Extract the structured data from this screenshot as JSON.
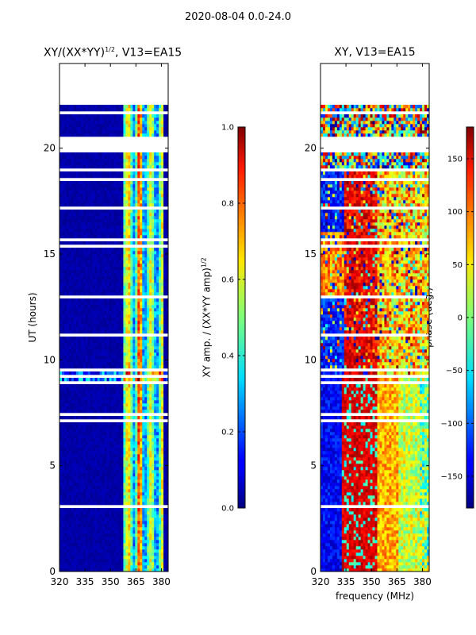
{
  "suptitle": "2020-08-04 0.0-24.0",
  "chart_data": [
    {
      "type": "heatmap",
      "title": "XY/(XX*YY)^1/2, V13=EA15",
      "title_main": "XY/(XX*YY)",
      "title_sup": "1/2",
      "title_rest": ", V13=EA15",
      "xlabel": "",
      "ylabel": "UT (hours)",
      "xlim": [
        320,
        384
      ],
      "ylim": [
        0,
        24
      ],
      "xticks": [
        "320",
        "335",
        "350",
        "365",
        "380"
      ],
      "yticks": [
        "0",
        "5",
        "10",
        "15",
        "20"
      ],
      "colorbar": {
        "label": "XY amp. / (XX*YY amp)^1/2",
        "label_main": "XY amp. / (XX*YY amp)",
        "label_sup": "1/2",
        "range": [
          0.0,
          1.0
        ],
        "ticks": [
          "0.0",
          "0.2",
          "0.4",
          "0.6",
          "0.8",
          "1.0"
        ],
        "colormap": "jet"
      }
    },
    {
      "type": "heatmap",
      "title": "XY, V13=EA15",
      "xlabel": "frequency (MHz)",
      "ylabel": "",
      "xlim": [
        320,
        384
      ],
      "ylim": [
        0,
        24
      ],
      "xticks": [
        "320",
        "335",
        "350",
        "365",
        "380"
      ],
      "yticks": [
        "0",
        "5",
        "10",
        "15",
        "20"
      ],
      "colorbar": {
        "label": "phase (deg.)",
        "range": [
          -180,
          180
        ],
        "ticks": [
          "−150",
          "−100",
          "−50",
          "0",
          "50",
          "100",
          "150"
        ],
        "colormap": "jet"
      }
    }
  ],
  "data_gaps_hours": [
    [
      19.8,
      20.6
    ],
    [
      18.9,
      19.1
    ],
    [
      22.0,
      24.0
    ]
  ]
}
